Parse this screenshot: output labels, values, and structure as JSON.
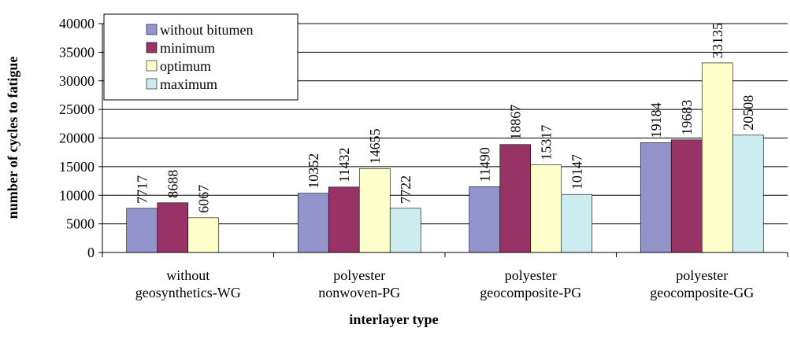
{
  "chart_data": {
    "type": "bar",
    "categories": [
      [
        "without",
        "geosynthetics-WG"
      ],
      [
        "polyester",
        "nonwoven-PG"
      ],
      [
        "polyester",
        "geocomposite-PG"
      ],
      [
        "polyester",
        "geocomposite-GG"
      ]
    ],
    "series": [
      {
        "name": "without bitumen",
        "color": "#9494cc",
        "values": [
          7717,
          10352,
          11490,
          19184
        ]
      },
      {
        "name": "minimum",
        "color": "#993366",
        "values": [
          8688,
          11432,
          18867,
          19683
        ]
      },
      {
        "name": "optimum",
        "color": "#ffffcc",
        "values": [
          6067,
          14655,
          15317,
          33135
        ]
      },
      {
        "name": "maximum",
        "color": "#ccecf0",
        "values": [
          null,
          7722,
          10147,
          20508
        ]
      }
    ],
    "ylim": [
      0,
      40000
    ],
    "yticks": [
      0,
      5000,
      10000,
      15000,
      20000,
      25000,
      30000,
      35000,
      40000
    ],
    "grid": true,
    "legend": "top-left",
    "xlabel": "interlayer type",
    "ylabel": "number of cycles to fatigue"
  }
}
